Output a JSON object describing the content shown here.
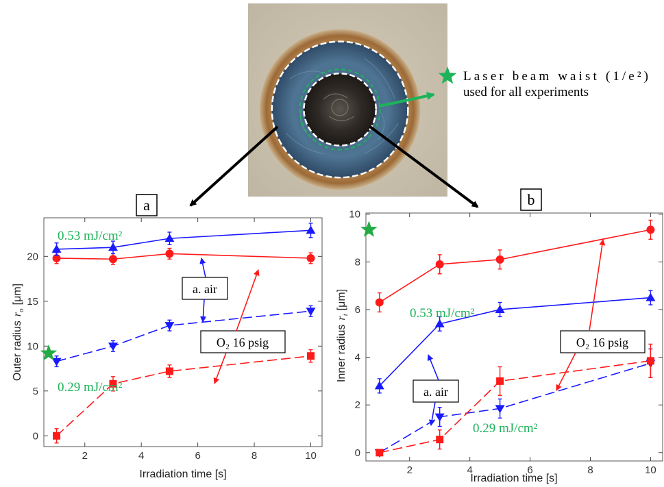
{
  "micrograph": {
    "annotation_line1": "Laser beam waist (1/e²)",
    "annotation_line2": "used for all experiments",
    "colors": {
      "background": "#c9c0ad",
      "rim": "#a8753f",
      "outer_disk": "#4c6f8a",
      "inner_core": "#2a2420",
      "beam_waist_marker": "#1db35a"
    },
    "marker_icon": "star-icon"
  },
  "colors": {
    "red": "#ff1a1a",
    "blue": "#1a1aff",
    "green_label": "#1db35a",
    "star": "#22aa44"
  },
  "chart_data": [
    {
      "panel_label": "a",
      "type": "line",
      "xlabel": "Irradiation time [s]",
      "ylabel_main": "Outer radius",
      "ylabel_symbol": "r",
      "ylabel_subscript": "o",
      "ylabel_unit": "[μm]",
      "xlim": [
        0.55,
        10.4
      ],
      "ylim": [
        -1.2,
        24.3
      ],
      "xticks": [
        2,
        4,
        6,
        8,
        10
      ],
      "yticks": [
        0,
        5,
        10,
        15,
        20
      ],
      "grid": false,
      "series": [
        {
          "color": "red",
          "style": "solid",
          "marker": "circle",
          "x": [
            1,
            3,
            5,
            10
          ],
          "y": [
            19.8,
            19.7,
            20.3,
            19.8
          ],
          "err": [
            0.6,
            0.6,
            0.6,
            0.6
          ]
        },
        {
          "color": "blue",
          "style": "solid",
          "marker": "triangle-up",
          "x": [
            1,
            3,
            5,
            10
          ],
          "y": [
            20.8,
            21.0,
            22.0,
            22.9
          ],
          "err": [
            0.7,
            0.7,
            0.7,
            0.8
          ]
        },
        {
          "color": "blue",
          "style": "dashed",
          "marker": "triangle-down",
          "x": [
            1,
            3,
            5,
            10
          ],
          "y": [
            8.3,
            10.0,
            12.3,
            13.9
          ],
          "err": [
            0.6,
            0.6,
            0.6,
            0.6
          ]
        },
        {
          "color": "red",
          "style": "dashed",
          "marker": "square",
          "x": [
            1,
            3,
            5,
            10
          ],
          "y": [
            0.0,
            5.8,
            7.2,
            8.9
          ],
          "err": [
            0.8,
            0.8,
            0.7,
            0.7
          ]
        }
      ],
      "star": {
        "x": 0.72,
        "y": 9.2
      },
      "labels": {
        "high_fluence": "0.53 mJ/cm²",
        "low_fluence": "0.29 mJ/cm²",
        "air": "a. air",
        "oxygen": "O₂ 16 psig"
      }
    },
    {
      "panel_label": "b",
      "type": "line",
      "xlabel": "Irradiation time [s]",
      "ylabel_main": "Inner radius",
      "ylabel_symbol": "r",
      "ylabel_subscript": "i",
      "ylabel_unit": "[μm]",
      "xlim": [
        0.55,
        10.4
      ],
      "ylim": [
        -0.35,
        10.05
      ],
      "xticks": [
        2,
        4,
        6,
        8,
        10
      ],
      "yticks": [
        0,
        2,
        4,
        6,
        8,
        10
      ],
      "grid": false,
      "series": [
        {
          "color": "red",
          "style": "solid",
          "marker": "circle",
          "x": [
            1,
            3,
            5,
            10
          ],
          "y": [
            6.3,
            7.9,
            8.1,
            9.35
          ],
          "err": [
            0.4,
            0.4,
            0.4,
            0.4
          ]
        },
        {
          "color": "blue",
          "style": "solid",
          "marker": "triangle-up",
          "x": [
            1,
            3,
            5,
            10
          ],
          "y": [
            2.8,
            5.4,
            6.0,
            6.5
          ],
          "err": [
            0.3,
            0.3,
            0.3,
            0.3
          ]
        },
        {
          "color": "blue",
          "style": "dashed",
          "marker": "triangle-down",
          "x": [
            1,
            3,
            5,
            10
          ],
          "y": [
            0.0,
            1.5,
            1.85,
            3.75
          ],
          "err": [
            0.1,
            0.4,
            0.4,
            0.6
          ]
        },
        {
          "color": "red",
          "style": "dashed",
          "marker": "square",
          "x": [
            1,
            3,
            5,
            10
          ],
          "y": [
            0.0,
            0.55,
            3.0,
            3.85
          ],
          "err": [
            0.1,
            0.4,
            0.6,
            0.7
          ]
        }
      ],
      "star": {
        "x": 0.65,
        "y": 9.35
      },
      "labels": {
        "high_fluence": "0.53 mJ/cm²",
        "low_fluence": "0.29 mJ/cm²",
        "air": "a. air",
        "oxygen": "O₂ 16 psig"
      }
    }
  ]
}
